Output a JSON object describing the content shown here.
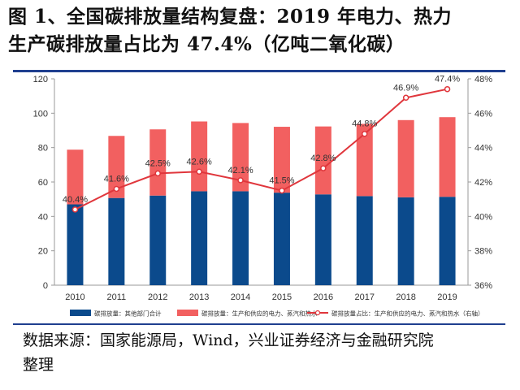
{
  "header": {
    "title_line1": "图 1、全国碳排放量结构复盘：2019 年电力、热力",
    "title_line2": "生产碳排放量占比为 47.4%（亿吨二氧化碳）"
  },
  "footer": {
    "source_line1": "数据来源：国家能源局，Wind，兴业证券经济与金融研究院",
    "source_line2": "整理"
  },
  "colors": {
    "other": "#0b4a8c",
    "power": "#f26060",
    "share_line": "#e0363c",
    "rule": "#1f3f8f"
  },
  "chart_data": {
    "type": "bar",
    "stacked": true,
    "categories": [
      "2010",
      "2011",
      "2012",
      "2013",
      "2014",
      "2015",
      "2016",
      "2017",
      "2018",
      "2019"
    ],
    "series": [
      {
        "name": "碳排放量：其他部门合计",
        "kind": "bar",
        "values": [
          47.0,
          50.7,
          52.1,
          54.6,
          54.6,
          53.8,
          52.8,
          51.8,
          51.1,
          51.4
        ]
      },
      {
        "name": "碳排放量：生产和供应的电力、蒸汽和热水",
        "kind": "bar",
        "values": [
          31.8,
          36.1,
          38.5,
          40.6,
          39.7,
          38.3,
          39.5,
          42.0,
          44.9,
          46.3
        ]
      },
      {
        "name": "碳排放量占比：生产和供应的电力、蒸汽和热水（右轴）",
        "kind": "line",
        "axis": "right",
        "values": [
          40.4,
          41.6,
          42.5,
          42.6,
          42.1,
          41.5,
          42.8,
          44.8,
          46.9,
          47.4
        ],
        "labels": [
          "40.4%",
          "41.6%",
          "42.5%",
          "42.6%",
          "42.1%",
          "41.5%",
          "42.8%",
          "44.8%",
          "46.9%",
          "47.4%"
        ]
      }
    ],
    "y_left": {
      "min": 0,
      "max": 120,
      "ticks": [
        "0",
        "20",
        "40",
        "60",
        "80",
        "100",
        "120"
      ]
    },
    "y_right": {
      "min": 36,
      "max": 48,
      "ticks": [
        "36%",
        "38%",
        "40%",
        "42%",
        "44%",
        "46%",
        "48%"
      ]
    },
    "grid": false,
    "legend_position": "bottom"
  }
}
